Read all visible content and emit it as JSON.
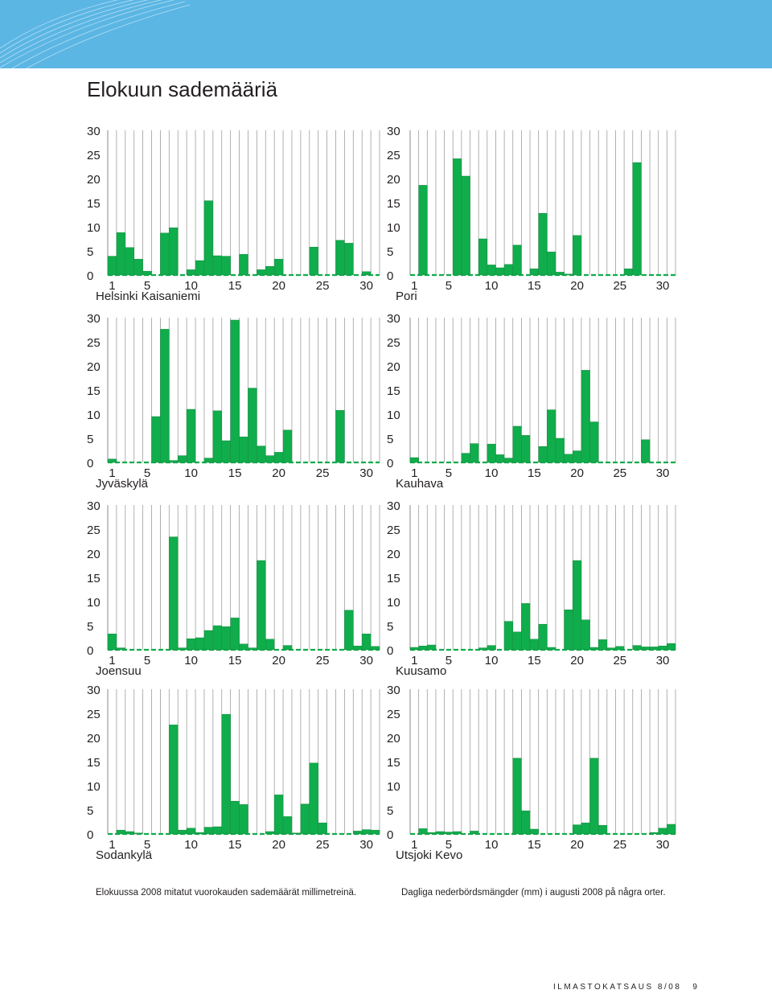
{
  "page": {
    "title": "Elokuun sademääriä",
    "caption_fi": "Elokuussa 2008 mitatut vuorokauden sademäärät millimetreinä.",
    "caption_sv": "Dagliga nederbördsmängder (mm) i augusti 2008 på några orter.",
    "footer_publication": "ILMASTOKATSAUS 8/08",
    "footer_page": "9"
  },
  "colors": {
    "bar": "#0fad4b",
    "bar_outline": "#1f8a45",
    "grid": "#9e9e9e",
    "zero_dash": "#0fad4b",
    "banner": "#5bb6e4"
  },
  "chart_data": [
    {
      "type": "bar",
      "title": "Helsinki Kaisaniemi",
      "ylim": [
        0,
        30
      ],
      "y_ticks": [
        "0",
        "5",
        "10",
        "15",
        "20",
        "25",
        "30"
      ],
      "x_ticks": [
        "1",
        "5",
        "10",
        "15",
        "20",
        "25",
        "30"
      ],
      "x": [
        1,
        2,
        3,
        4,
        5,
        6,
        7,
        8,
        9,
        10,
        11,
        12,
        13,
        14,
        15,
        16,
        17,
        18,
        19,
        20,
        21,
        22,
        23,
        24,
        25,
        26,
        27,
        28,
        29,
        30,
        31
      ],
      "values": [
        3.9,
        8.8,
        5.7,
        3.3,
        0.8,
        0,
        8.7,
        9.8,
        0,
        1.1,
        3.0,
        15.4,
        4.0,
        3.9,
        0,
        4.3,
        0,
        1.1,
        1.8,
        3.3,
        0,
        0,
        0,
        5.8,
        0,
        0,
        7.2,
        6.6,
        0,
        0.7,
        0
      ]
    },
    {
      "type": "bar",
      "title": "Pori",
      "ylim": [
        0,
        30
      ],
      "y_ticks": [
        "0",
        "5",
        "10",
        "15",
        "20",
        "25",
        "30"
      ],
      "x_ticks": [
        "1",
        "5",
        "10",
        "15",
        "20",
        "25",
        "30"
      ],
      "x": [
        1,
        2,
        3,
        4,
        5,
        6,
        7,
        8,
        9,
        10,
        11,
        12,
        13,
        14,
        15,
        16,
        17,
        18,
        19,
        20,
        21,
        22,
        23,
        24,
        25,
        26,
        27,
        28,
        29,
        30,
        31
      ],
      "values": [
        0,
        18.6,
        0,
        0,
        0,
        24.1,
        20.5,
        0,
        7.5,
        2.1,
        1.5,
        2.2,
        6.2,
        0,
        1.3,
        12.8,
        4.8,
        0.6,
        0.2,
        8.2,
        0,
        0,
        0,
        0,
        0,
        1.3,
        23.3,
        0,
        0,
        0,
        0
      ]
    },
    {
      "type": "bar",
      "title": "Jyväskylä",
      "ylim": [
        0,
        30
      ],
      "y_ticks": [
        "0",
        "5",
        "10",
        "15",
        "20",
        "25",
        "30"
      ],
      "x_ticks": [
        "1",
        "5",
        "10",
        "15",
        "20",
        "25",
        "30"
      ],
      "x": [
        1,
        2,
        3,
        4,
        5,
        6,
        7,
        8,
        9,
        10,
        11,
        12,
        13,
        14,
        15,
        16,
        17,
        18,
        19,
        20,
        21,
        22,
        23,
        24,
        25,
        26,
        27,
        28,
        29,
        30,
        31
      ],
      "values": [
        0.7,
        0,
        0,
        0,
        0,
        9.5,
        27.6,
        0.4,
        1.4,
        11.0,
        0,
        0.9,
        10.7,
        4.5,
        29.5,
        5.3,
        15.4,
        3.4,
        1.4,
        2.1,
        6.7,
        0,
        0,
        0,
        0,
        0,
        10.8,
        0,
        0,
        0,
        0
      ]
    },
    {
      "type": "bar",
      "title": "Kauhava",
      "ylim": [
        0,
        30
      ],
      "y_ticks": [
        "0",
        "5",
        "10",
        "15",
        "20",
        "25",
        "30"
      ],
      "x_ticks": [
        "1",
        "5",
        "10",
        "15",
        "20",
        "25",
        "30"
      ],
      "x": [
        1,
        2,
        3,
        4,
        5,
        6,
        7,
        8,
        9,
        10,
        11,
        12,
        13,
        14,
        15,
        16,
        17,
        18,
        19,
        20,
        21,
        22,
        23,
        24,
        25,
        26,
        27,
        28,
        29,
        30,
        31
      ],
      "values": [
        1.0,
        0,
        0,
        0,
        0,
        0,
        1.9,
        3.9,
        0,
        3.8,
        1.6,
        0.9,
        7.5,
        5.6,
        0,
        3.3,
        10.9,
        5.0,
        1.7,
        2.4,
        19.1,
        8.4,
        0,
        0,
        0,
        0,
        0,
        4.7,
        0,
        0,
        0
      ]
    },
    {
      "type": "bar",
      "title": "Joensuu",
      "ylim": [
        0,
        30
      ],
      "y_ticks": [
        "0",
        "5",
        "10",
        "15",
        "20",
        "25",
        "30"
      ],
      "x_ticks": [
        "1",
        "5",
        "10",
        "15",
        "20",
        "25",
        "30"
      ],
      "x": [
        1,
        2,
        3,
        4,
        5,
        6,
        7,
        8,
        9,
        10,
        11,
        12,
        13,
        14,
        15,
        16,
        17,
        18,
        19,
        20,
        21,
        22,
        23,
        24,
        25,
        26,
        27,
        28,
        29,
        30,
        31
      ],
      "values": [
        3.3,
        0.4,
        0,
        0,
        0,
        0,
        0,
        23.4,
        0.4,
        2.3,
        2.5,
        4.0,
        5.0,
        4.8,
        6.6,
        1.2,
        0.4,
        18.5,
        2.2,
        0,
        0.9,
        0,
        0,
        0,
        0,
        0,
        0,
        8.2,
        0.8,
        3.3,
        0.7
      ]
    },
    {
      "type": "bar",
      "title": "Kuusamo",
      "ylim": [
        0,
        30
      ],
      "y_ticks": [
        "0",
        "5",
        "10",
        "15",
        "20",
        "25",
        "30"
      ],
      "x_ticks": [
        "1",
        "5",
        "10",
        "15",
        "20",
        "25",
        "30"
      ],
      "x": [
        1,
        2,
        3,
        4,
        5,
        6,
        7,
        8,
        9,
        10,
        11,
        12,
        13,
        14,
        15,
        16,
        17,
        18,
        19,
        20,
        21,
        22,
        23,
        24,
        25,
        26,
        27,
        28,
        29,
        30,
        31
      ],
      "values": [
        0.5,
        0.8,
        1.0,
        0,
        0,
        0,
        0,
        0,
        0.4,
        0.9,
        0,
        5.9,
        3.7,
        9.6,
        2.2,
        5.3,
        0.5,
        0,
        8.3,
        18.5,
        6.2,
        0.5,
        2.1,
        0.4,
        0.7,
        0,
        0.9,
        0.6,
        0.6,
        0.8,
        1.3
      ]
    },
    {
      "type": "bar",
      "title": "Sodankylä",
      "ylim": [
        0,
        30
      ],
      "y_ticks": [
        "0",
        "5",
        "10",
        "15",
        "20",
        "25",
        "30"
      ],
      "x_ticks": [
        "1",
        "5",
        "10",
        "15",
        "20",
        "25",
        "30"
      ],
      "x": [
        1,
        2,
        3,
        4,
        5,
        6,
        7,
        8,
        9,
        10,
        11,
        12,
        13,
        14,
        15,
        16,
        17,
        18,
        19,
        20,
        21,
        22,
        23,
        24,
        25,
        26,
        27,
        28,
        29,
        30,
        31
      ],
      "values": [
        0,
        0.8,
        0.5,
        0.2,
        0,
        0,
        0,
        22.6,
        0.8,
        1.2,
        0.3,
        1.4,
        1.5,
        24.8,
        6.8,
        6.1,
        0,
        0,
        0.5,
        8.1,
        3.6,
        0.2,
        6.2,
        14.7,
        2.3,
        0,
        0,
        0,
        0.6,
        0.9,
        0.8
      ]
    },
    {
      "type": "bar",
      "title": "Utsjoki Kevo",
      "ylim": [
        0,
        30
      ],
      "y_ticks": [
        "0",
        "5",
        "10",
        "15",
        "20",
        "25",
        "30"
      ],
      "x_ticks": [
        "1",
        "5",
        "10",
        "15",
        "20",
        "25",
        "30"
      ],
      "x": [
        1,
        2,
        3,
        4,
        5,
        6,
        7,
        8,
        9,
        10,
        11,
        12,
        13,
        14,
        15,
        16,
        17,
        18,
        19,
        20,
        21,
        22,
        23,
        24,
        25,
        26,
        27,
        28,
        29,
        30,
        31
      ],
      "values": [
        0,
        1.1,
        0.3,
        0.5,
        0.4,
        0.5,
        0,
        0.6,
        0,
        0,
        0,
        0,
        15.7,
        4.8,
        1.0,
        0,
        0,
        0,
        0,
        1.9,
        2.3,
        15.7,
        1.8,
        0,
        0,
        0,
        0,
        0,
        0.3,
        1.2,
        2.0
      ]
    }
  ]
}
